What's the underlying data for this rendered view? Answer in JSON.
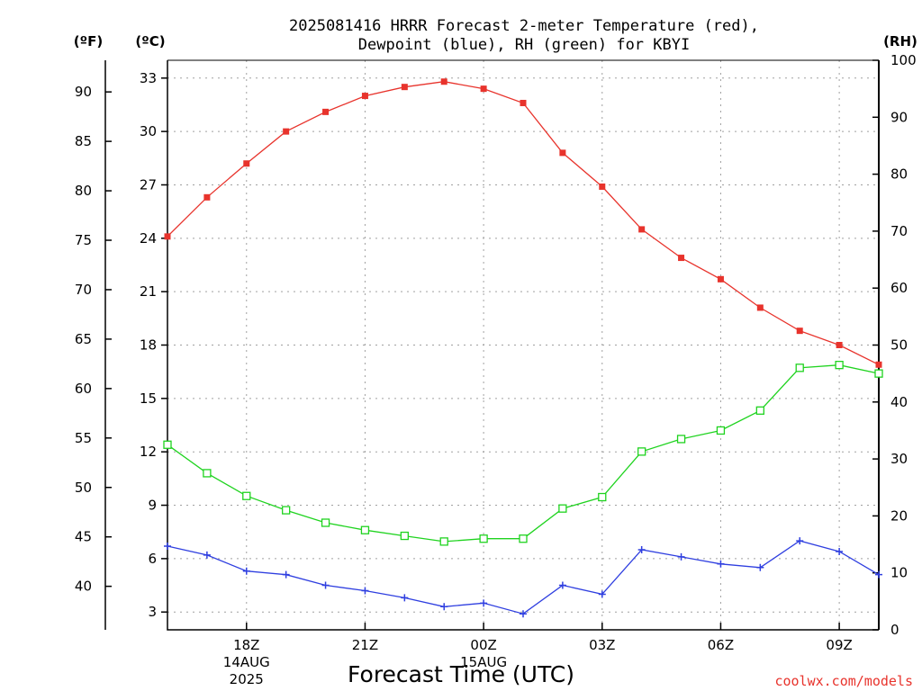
{
  "chart_data": {
    "type": "line",
    "title_line1": "2025081416 HRRR Forecast 2-meter Temperature (red),",
    "title_line2": "Dewpoint (blue), RH (green) for KBYI",
    "xlabel": "Forecast Time (UTC)",
    "credit": "coolwx.com/models",
    "units": {
      "fahrenheit": "(ºF)",
      "celsius": "(ºC)",
      "rh": "(RH)"
    },
    "x_hours_utc": [
      16,
      17,
      18,
      19,
      20,
      21,
      22,
      23,
      24,
      25,
      26,
      27,
      28,
      29,
      30,
      31,
      32,
      33,
      34
    ],
    "xlim": [
      16,
      34
    ],
    "x_ticks": [
      {
        "x": 18,
        "lines": [
          "18Z",
          "14AUG",
          "2025"
        ]
      },
      {
        "x": 21,
        "lines": [
          "21Z"
        ]
      },
      {
        "x": 24,
        "lines": [
          "00Z",
          "15AUG"
        ]
      },
      {
        "x": 27,
        "lines": [
          "03Z"
        ]
      },
      {
        "x": 30,
        "lines": [
          "06Z"
        ]
      },
      {
        "x": 33,
        "lines": [
          "09Z"
        ]
      }
    ],
    "celsius_axis": {
      "ylim": [
        2,
        34
      ],
      "ticks": [
        3,
        6,
        9,
        12,
        15,
        18,
        21,
        24,
        27,
        30,
        33
      ]
    },
    "fahrenheit_axis": {
      "ylim": [
        35.6,
        93.2
      ],
      "ticks": [
        40,
        45,
        50,
        55,
        60,
        65,
        70,
        75,
        80,
        85,
        90
      ]
    },
    "rh_axis": {
      "ylim": [
        0,
        100
      ],
      "ticks": [
        0,
        10,
        20,
        30,
        40,
        50,
        60,
        70,
        80,
        90,
        100
      ]
    },
    "grid": true,
    "series": [
      {
        "name": "Temperature",
        "axis": "celsius",
        "color": "#e8332c",
        "marker": "filled-square",
        "values": [
          24.1,
          26.3,
          28.2,
          30.0,
          31.1,
          32.0,
          32.5,
          32.8,
          32.4,
          31.6,
          28.8,
          26.9,
          24.5,
          22.9,
          21.7,
          20.1,
          18.8,
          18.0,
          16.9
        ]
      },
      {
        "name": "Dewpoint",
        "axis": "celsius",
        "color": "#2f3fe0",
        "marker": "plus",
        "values": [
          6.7,
          6.2,
          5.3,
          5.1,
          4.5,
          4.2,
          3.8,
          3.3,
          3.5,
          2.9,
          4.5,
          4.0,
          6.5,
          6.1,
          5.7,
          5.5,
          7.0,
          6.4,
          5.1
        ]
      },
      {
        "name": "RH",
        "axis": "rh",
        "color": "#1fd31f",
        "marker": "open-square",
        "values": [
          32.5,
          27.5,
          23.5,
          21.0,
          18.8,
          17.5,
          16.5,
          15.5,
          16.0,
          16.0,
          21.3,
          23.3,
          31.3,
          33.5,
          35.0,
          38.5,
          46.0,
          46.5,
          45.0
        ]
      }
    ]
  }
}
